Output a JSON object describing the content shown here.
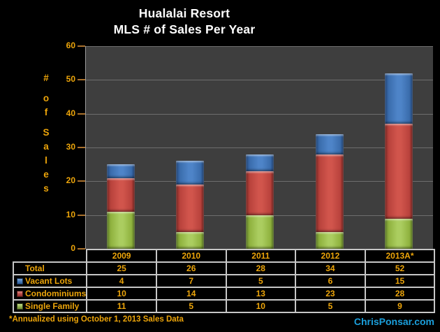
{
  "title": {
    "line1": "Hualalai Resort",
    "line2": "MLS # of Sales Per Year"
  },
  "colors": {
    "gold": "#EDA50A",
    "credit_blue": "#1B9FDC",
    "plot_bg": "#3E3E3E",
    "gridline": "#6E6E6E",
    "table_border": "#C6C6C6",
    "tick": "#A9712C",
    "blue_series": "#4F81BD",
    "red_series": "#C0504D",
    "green_series": "#9BBB59"
  },
  "chart_data": {
    "type": "bar",
    "stacked": true,
    "title": "Hualalai Resort MLS # of Sales Per Year",
    "categories": [
      "2009",
      "2010",
      "2011",
      "2012",
      "2013A*"
    ],
    "series": [
      {
        "name": "Single Family",
        "color_key": "green_series",
        "values": [
          11,
          5,
          10,
          5,
          9
        ]
      },
      {
        "name": "Condominiums",
        "color_key": "red_series",
        "values": [
          10,
          14,
          13,
          23,
          28
        ]
      },
      {
        "name": "Vacant Lots",
        "color_key": "blue_series",
        "values": [
          4,
          7,
          5,
          6,
          15
        ]
      }
    ],
    "totals": [
      25,
      26,
      28,
      34,
      52
    ],
    "xlabel": "",
    "ylabel": "# of Sales",
    "ylim": [
      0,
      60
    ],
    "yticks": [
      0,
      10,
      20,
      30,
      40,
      50,
      60
    ],
    "grid": true,
    "legend_position": "table-left"
  },
  "table": {
    "header": [
      "2009",
      "2010",
      "2011",
      "2012",
      "2013A*"
    ],
    "rows": [
      {
        "label": "Total",
        "key": null,
        "values": [
          "25",
          "26",
          "28",
          "34",
          "52"
        ]
      },
      {
        "label": "Vacant Lots",
        "key": "blue_series",
        "values": [
          "4",
          "7",
          "5",
          "6",
          "15"
        ]
      },
      {
        "label": "Condominiums",
        "key": "red_series",
        "values": [
          "10",
          "14",
          "13",
          "23",
          "28"
        ]
      },
      {
        "label": "Single Family",
        "key": "green_series",
        "values": [
          "11",
          "5",
          "10",
          "5",
          "9"
        ]
      }
    ]
  },
  "footer": {
    "note": "*Annualized using October 1, 2013 Sales Data",
    "credit": "ChrisPonsar.com"
  }
}
